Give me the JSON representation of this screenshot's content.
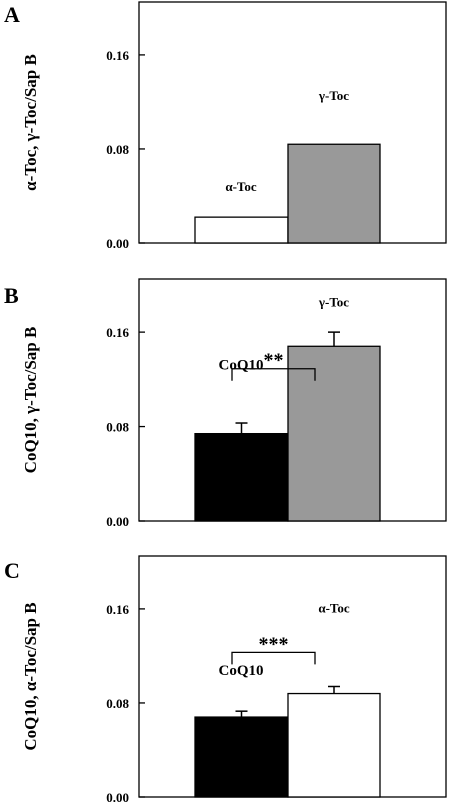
{
  "chart_data": [
    {
      "type": "bar",
      "panel": "A",
      "ylabel": "α-Toc, γ-Toc/Sap B",
      "ylim": [
        0,
        0.205
      ],
      "yticks": [
        "0.00",
        "0.08",
        "0.16"
      ],
      "ytick_values": [
        0,
        0.08,
        0.16
      ],
      "bars": [
        {
          "label": "α-Toc",
          "value": 0.022,
          "error": 0,
          "color": "#ffffff"
        },
        {
          "label": "γ-Toc",
          "value": 0.084,
          "error": 0,
          "color": "#999999"
        }
      ],
      "significance": ""
    },
    {
      "type": "bar",
      "panel": "B",
      "ylabel": "CoQ10, γ-Toc/Sap B",
      "ylim": [
        0,
        0.205
      ],
      "yticks": [
        "0.00",
        "0.08",
        "0.16"
      ],
      "ytick_values": [
        0,
        0.08,
        0.16
      ],
      "bars": [
        {
          "label": "CoQ10",
          "value": 0.074,
          "error": 0.009,
          "color": "#000000"
        },
        {
          "label": "γ-Toc",
          "value": 0.148,
          "error": 0.012,
          "color": "#999999"
        }
      ],
      "significance": "**"
    },
    {
      "type": "bar",
      "panel": "C",
      "ylabel": "CoQ10, α-Toc/Sap B",
      "ylim": [
        0,
        0.205
      ],
      "yticks": [
        "0.00",
        "0.08",
        "0.16"
      ],
      "ytick_values": [
        0,
        0.08,
        0.16
      ],
      "bars": [
        {
          "label": "CoQ10",
          "value": 0.068,
          "error": 0.005,
          "color": "#000000"
        },
        {
          "label": "α-Toc",
          "value": 0.088,
          "error": 0.006,
          "color": "#ffffff"
        }
      ],
      "significance": "***"
    }
  ]
}
